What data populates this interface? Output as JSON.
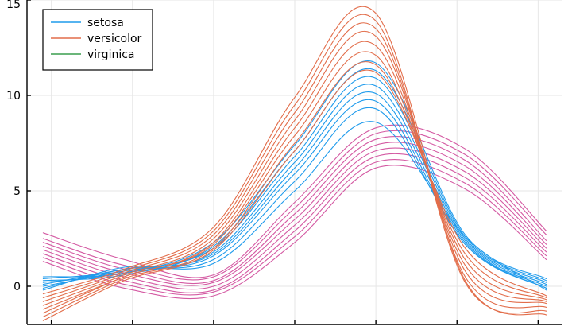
{
  "chart_data": {
    "type": "line",
    "title": "",
    "xlabel": "",
    "ylabel": "",
    "xlim": [
      -3.3,
      3.3
    ],
    "ylim": [
      -2.0,
      15.0
    ],
    "yticks": [
      0,
      5,
      10,
      15
    ],
    "xticks": [
      -3.0,
      -2.0,
      -1.0,
      0.0,
      1.0,
      2.0,
      3.0
    ],
    "grid": true,
    "legend": {
      "position": "top-left",
      "entries": [
        "setosa",
        "versicolor",
        "virginica"
      ]
    },
    "series": [
      {
        "name": "setosa",
        "color": "#1f9bec",
        "x": [
          -3.1,
          -2.1,
          -1.0,
          0.0,
          1.0,
          2.1,
          3.1
        ],
        "curves": [
          [
            0.5,
            0.7,
            2.3,
            7.4,
            11.7,
            2.7,
            0.4
          ],
          [
            0.3,
            0.6,
            2.1,
            7.1,
            11.3,
            2.6,
            0.3
          ],
          [
            0.4,
            0.8,
            2.0,
            6.8,
            10.9,
            2.5,
            0.2
          ],
          [
            0.2,
            0.7,
            1.8,
            6.5,
            10.5,
            2.4,
            0.1
          ],
          [
            0.1,
            0.9,
            1.7,
            6.2,
            10.1,
            2.3,
            0.0
          ],
          [
            0.0,
            0.8,
            1.6,
            5.9,
            9.7,
            2.2,
            -0.1
          ],
          [
            -0.1,
            0.9,
            1.4,
            5.5,
            9.3,
            2.2,
            -0.1
          ],
          [
            -0.2,
            1.0,
            1.2,
            5.0,
            8.6,
            2.6,
            -0.2
          ]
        ]
      },
      {
        "name": "versicolor",
        "color": "#e26d4a",
        "x": [
          -3.1,
          -2.1,
          -1.0,
          0.0,
          1.0,
          2.1,
          3.1
        ],
        "curves": [
          [
            -0.4,
            0.9,
            3.1,
            9.9,
            14.3,
            0.3,
            -1.5
          ],
          [
            -0.6,
            0.8,
            2.9,
            9.5,
            13.9,
            0.2,
            -1.3
          ],
          [
            -0.8,
            0.7,
            2.7,
            9.1,
            13.5,
            0.5,
            -1.1
          ],
          [
            -1.0,
            0.6,
            2.5,
            8.7,
            13.1,
            0.8,
            -0.9
          ],
          [
            -1.2,
            0.5,
            2.3,
            8.3,
            12.6,
            1.1,
            -0.8
          ],
          [
            -1.4,
            0.5,
            2.2,
            7.9,
            12.1,
            1.4,
            -0.7
          ],
          [
            -1.6,
            0.4,
            2.0,
            7.5,
            11.6,
            1.7,
            -0.6
          ],
          [
            -1.8,
            0.3,
            1.9,
            7.1,
            11.2,
            2.0,
            -0.5
          ]
        ]
      },
      {
        "name": "virginica",
        "color": "#d45aa3",
        "x": [
          -3.1,
          -2.1,
          -1.0,
          0.0,
          1.0,
          2.1,
          3.1
        ],
        "curves": [
          [
            2.8,
            1.4,
            0.6,
            4.4,
            8.3,
            7.2,
            2.9
          ],
          [
            2.5,
            1.1,
            0.5,
            4.1,
            8.0,
            6.9,
            2.7
          ],
          [
            2.3,
            0.9,
            0.3,
            3.8,
            7.7,
            6.6,
            2.4
          ],
          [
            2.1,
            0.7,
            0.2,
            3.5,
            7.4,
            6.3,
            2.2
          ],
          [
            1.9,
            0.5,
            0.0,
            3.2,
            7.1,
            6.0,
            2.0
          ],
          [
            1.7,
            0.3,
            -0.2,
            2.9,
            6.8,
            5.7,
            1.8
          ],
          [
            1.5,
            0.1,
            -0.3,
            2.6,
            6.5,
            5.4,
            1.6
          ],
          [
            1.3,
            -0.1,
            -0.5,
            2.3,
            6.2,
            5.1,
            1.4
          ]
        ]
      }
    ]
  }
}
